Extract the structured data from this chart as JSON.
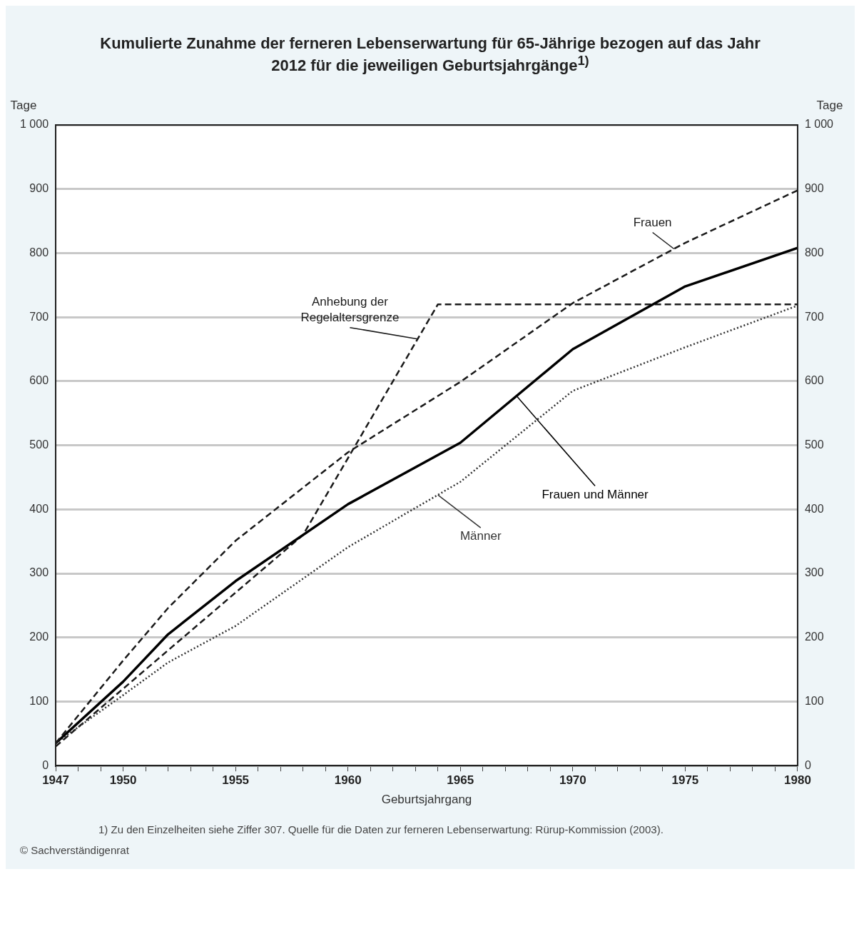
{
  "chart_data": {
    "type": "line",
    "title": "Kumulierte Zunahme der ferneren Lebenserwartung für 65-Jährige bezogen auf das Jahr 2012 für die jeweiligen Geburtsjahrgänge$^{1)}$",
    "xlabel": "Geburtsjahrgang",
    "ylabel": "Tage",
    "y2label": "Tage",
    "xlim": [
      1947,
      1980
    ],
    "xticks": [
      1947,
      {
        "value": 1948,
        "label": null
      },
      {
        "value": 1949,
        "label": null
      },
      1950,
      {
        "value": 1951,
        "label": null
      },
      {
        "value": 1952,
        "label": null
      },
      {
        "value": 1953,
        "label": null
      },
      {
        "value": 1954,
        "label": null
      },
      1955,
      {
        "value": 1956,
        "label": null
      },
      {
        "value": 1957,
        "label": null
      },
      {
        "value": 1958,
        "label": null
      },
      {
        "value": 1959,
        "label": null
      },
      1960,
      {
        "value": 1961,
        "label": null
      },
      {
        "value": 1962,
        "label": null
      },
      {
        "value": 1963,
        "label": null
      },
      {
        "value": 1964,
        "label": null
      },
      1965,
      {
        "value": 1966,
        "label": null
      },
      {
        "value": 1967,
        "label": null
      },
      {
        "value": 1968,
        "label": null
      },
      {
        "value": 1969,
        "label": null
      },
      1970,
      {
        "value": 1971,
        "label": null
      },
      {
        "value": 1972,
        "label": null
      },
      {
        "value": 1973,
        "label": null
      },
      {
        "value": 1974,
        "label": null
      },
      1975,
      {
        "value": 1976,
        "label": null
      },
      {
        "value": 1977,
        "label": null
      },
      {
        "value": 1978,
        "label": null
      },
      {
        "value": 1979,
        "label": null
      },
      1980
    ],
    "ylim": [
      0,
      1000
    ],
    "yticks": [
      0,
      100,
      200,
      300,
      400,
      500,
      600,
      700,
      800,
      900,
      {
        "value": 1000,
        "label": "1 000"
      }
    ],
    "y2lim": [
      0,
      1000
    ],
    "y2ticks": [
      0,
      100,
      200,
      300,
      400,
      500,
      600,
      700,
      800,
      900,
      {
        "value": 1000,
        "label": "1 000"
      }
    ],
    "grid": "y",
    "marker": "none",
    "series": [
      {
        "name": "Frauen",
        "color": "#1a1a1a",
        "line_style": "dashed",
        "x": [
          1947,
          1950,
          1952,
          1955,
          1960,
          1965,
          1970,
          1975,
          1980
        ],
        "values": [
          35,
          164,
          246,
          351,
          489,
          599,
          722,
          816,
          898
        ]
      },
      {
        "name": "Frauen und Männer",
        "color": "#000000",
        "line_style": "solid",
        "x": [
          1947,
          1950,
          1952,
          1955,
          1960,
          1965,
          1970,
          1975,
          1980
        ],
        "values": [
          35,
          131,
          205,
          288,
          408,
          504,
          650,
          748,
          808
        ]
      },
      {
        "name": "Männer",
        "color": "#333333",
        "line_style": "dotted",
        "x": [
          1947,
          1950,
          1952,
          1955,
          1960,
          1965,
          1970,
          1975,
          1980
        ],
        "values": [
          35,
          110,
          161,
          218,
          341,
          443,
          585,
          653,
          718
        ]
      },
      {
        "name": "Anhebung der Regelaltersgrenze",
        "color": "#1a1a1a",
        "line_style": "dashed",
        "x": [
          1947,
          1958,
          1964,
          1980
        ],
        "values": [
          30,
          360,
          720,
          720
        ]
      }
    ],
    "annotations": [
      "1) Zu den Einzelheiten siehe Ziffer 307. Quelle für die Daten zur ferneren Lebenserwartung: Rürup-Kommission (2003).",
      "© Sachverständigenrat"
    ]
  }
}
